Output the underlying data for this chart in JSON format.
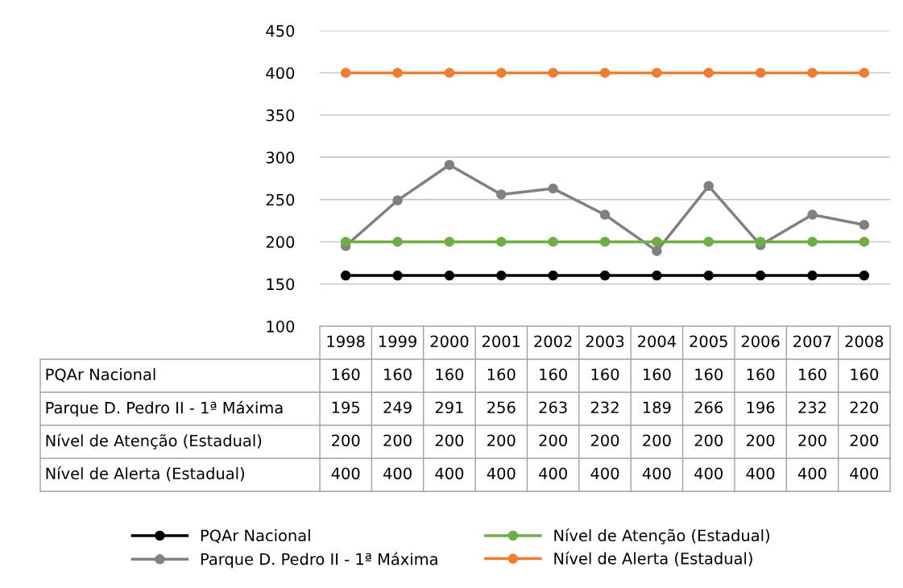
{
  "chart_data": {
    "type": "line",
    "categories": [
      "1998",
      "1999",
      "2000",
      "2001",
      "2002",
      "2003",
      "2004",
      "2005",
      "2006",
      "2007",
      "2008"
    ],
    "series": [
      {
        "name": "PQAr Nacional",
        "color": "#000000",
        "values": [
          160,
          160,
          160,
          160,
          160,
          160,
          160,
          160,
          160,
          160,
          160
        ]
      },
      {
        "name": "Parque D. Pedro II - 1ª Máxima",
        "color": "#808080",
        "values": [
          195,
          249,
          291,
          256,
          263,
          232,
          189,
          266,
          196,
          232,
          220
        ]
      },
      {
        "name": "Nível de Atenção (Estadual)",
        "color": "#70ad47",
        "values": [
          200,
          200,
          200,
          200,
          200,
          200,
          200,
          200,
          200,
          200,
          200
        ]
      },
      {
        "name": "Nível de Alerta (Estadual)",
        "color": "#ed7d31",
        "values": [
          400,
          400,
          400,
          400,
          400,
          400,
          400,
          400,
          400,
          400,
          400
        ]
      }
    ],
    "ylim": [
      100,
      450
    ],
    "yticks": [
      100,
      150,
      200,
      250,
      300,
      350,
      400,
      450
    ],
    "grid": "y",
    "legend": "bottom",
    "marker": "circle",
    "line_style": "solid",
    "data_labels": true
  }
}
